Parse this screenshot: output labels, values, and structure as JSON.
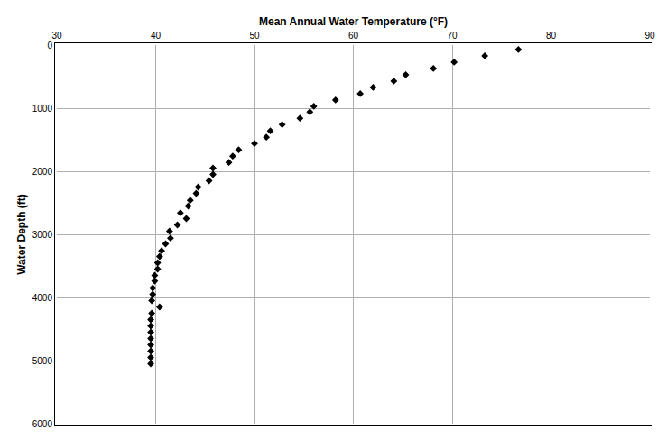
{
  "chart_data": {
    "type": "scatter",
    "x_label": "Mean Annual Water Temperature (°F)",
    "y_label": "Water Depth (ft)",
    "x": [
      76.7,
      73.3,
      70.2,
      68.1,
      65.3,
      64.1,
      62.0,
      60.7,
      58.2,
      56.0,
      55.6,
      54.6,
      52.8,
      51.6,
      51.2,
      50.0,
      48.4,
      47.8,
      47.4,
      45.8,
      45.8,
      45.4,
      44.3,
      44.1,
      43.5,
      43.3,
      42.5,
      43.1,
      42.2,
      41.4,
      41.5,
      41.0,
      40.6,
      40.4,
      40.2,
      40.2,
      39.9,
      39.9,
      39.7,
      39.7,
      39.6,
      40.4,
      39.6,
      39.5,
      39.5,
      39.5,
      39.5,
      39.5,
      39.5,
      39.5,
      39.5
    ],
    "values": [
      70,
      170,
      270,
      370,
      470,
      570,
      670,
      770,
      870,
      970,
      1060,
      1160,
      1260,
      1360,
      1460,
      1560,
      1660,
      1760,
      1860,
      1950,
      2050,
      2150,
      2250,
      2350,
      2460,
      2550,
      2660,
      2750,
      2850,
      2950,
      3060,
      3150,
      3260,
      3350,
      3450,
      3550,
      3650,
      3740,
      3850,
      3950,
      4050,
      4150,
      4250,
      4350,
      4450,
      4550,
      4650,
      4750,
      4850,
      4950,
      5050
    ],
    "color": "#000000",
    "marker": "diamond",
    "xlim": [
      30,
      90
    ],
    "xticks": [
      30,
      40,
      50,
      60,
      70,
      80,
      90
    ],
    "ylim": [
      6000,
      0
    ],
    "yticks": [
      0,
      1000,
      2000,
      3000,
      4000,
      5000,
      6000
    ],
    "grid": true
  }
}
